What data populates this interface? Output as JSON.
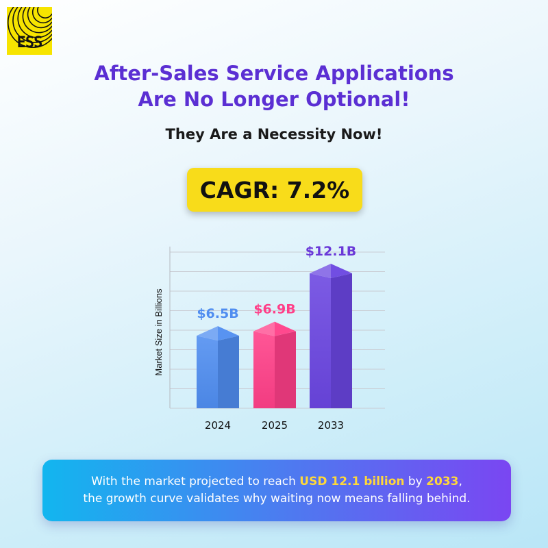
{
  "logo": {
    "text": "ESS"
  },
  "headline": {
    "line1": "After-Sales Service Applications",
    "line2": "Are No Longer Optional!"
  },
  "subhead": "They Are a Necessity Now!",
  "cagr_label": "CAGR: 7.2%",
  "chart_data": {
    "type": "bar",
    "title": "",
    "xlabel": "",
    "ylabel": "Market Size in Billions",
    "categories": [
      "2024",
      "2025",
      "2033"
    ],
    "values": [
      6.5,
      6.9,
      12.1
    ],
    "data_labels": [
      "$6.5B",
      "$6.9B",
      "$12.1B"
    ],
    "colors": [
      "#4f8df0",
      "#ff3f88",
      "#6a45e0"
    ],
    "label_colors": [
      "#4f8df0",
      "#ff3f88",
      "#6a38d8"
    ],
    "ylim": [
      0,
      14
    ],
    "grid": true
  },
  "callout": {
    "line1_pre": "With the market projected to reach ",
    "line1_hl1": "USD 12.1 billion",
    "line1_mid": " by ",
    "line1_hl2": "2033",
    "line1_post": ",",
    "line2": "the growth curve validates why waiting now means falling behind."
  }
}
